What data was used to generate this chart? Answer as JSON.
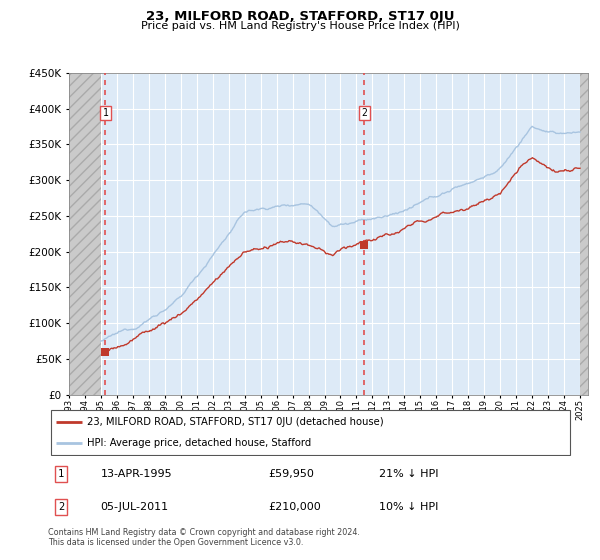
{
  "title": "23, MILFORD ROAD, STAFFORD, ST17 0JU",
  "subtitle": "Price paid vs. HM Land Registry's House Price Index (HPI)",
  "legend_line1": "23, MILFORD ROAD, STAFFORD, ST17 0JU (detached house)",
  "legend_line2": "HPI: Average price, detached house, Stafford",
  "annotation1_label": "1",
  "annotation1_date": "13-APR-1995",
  "annotation1_price": "£59,950",
  "annotation1_hpi": "21% ↓ HPI",
  "annotation1_year": 1995.28,
  "annotation1_price_val": 59950,
  "annotation2_label": "2",
  "annotation2_date": "05-JUL-2011",
  "annotation2_price": "£210,000",
  "annotation2_hpi": "10% ↓ HPI",
  "annotation2_year": 2011.5,
  "annotation2_price_val": 210000,
  "footer": "Contains HM Land Registry data © Crown copyright and database right 2024.\nThis data is licensed under the Open Government Licence v3.0.",
  "hpi_color": "#a8c4e0",
  "price_color": "#c0392b",
  "marker_color": "#c0392b",
  "vline_color": "#e05050",
  "bg_plot_color": "#ddeaf7",
  "hatch_bg_color": "#cacaca",
  "hatch_edge_color": "#aaaaaa",
  "grid_color": "#ffffff",
  "ylim": [
    0,
    450000
  ],
  "xlim_left": 1993.0,
  "xlim_right": 2025.5,
  "data_xmin": 1995.0,
  "data_xmax": 2025.0
}
